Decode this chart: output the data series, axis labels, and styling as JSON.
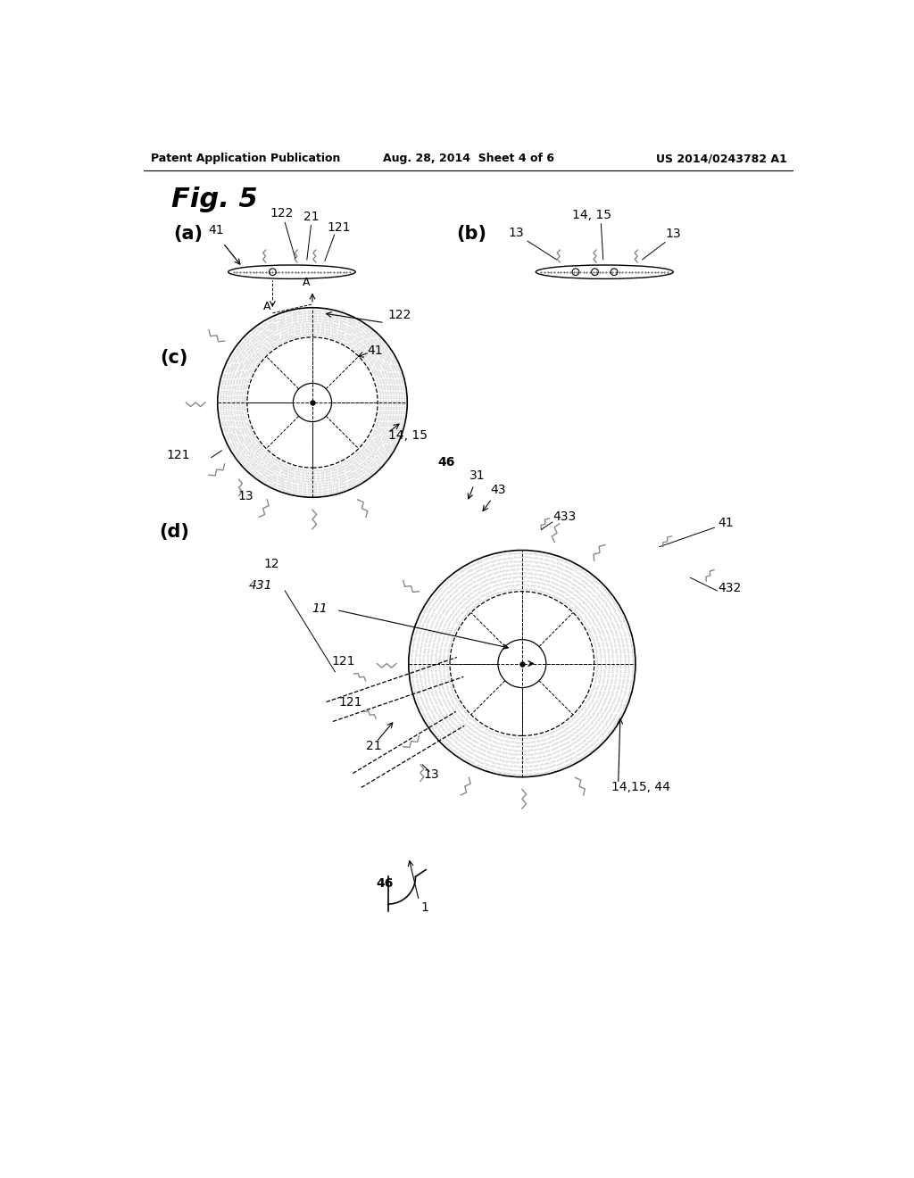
{
  "header_left": "Patent Application Publication",
  "header_mid": "Aug. 28, 2014  Sheet 4 of 6",
  "header_right": "US 2014/0243782 A1",
  "fig_title": "Fig. 5",
  "bg_color": "#ffffff",
  "line_color": "#000000",
  "gray_color": "#888888",
  "light_gray": "#cccccc"
}
